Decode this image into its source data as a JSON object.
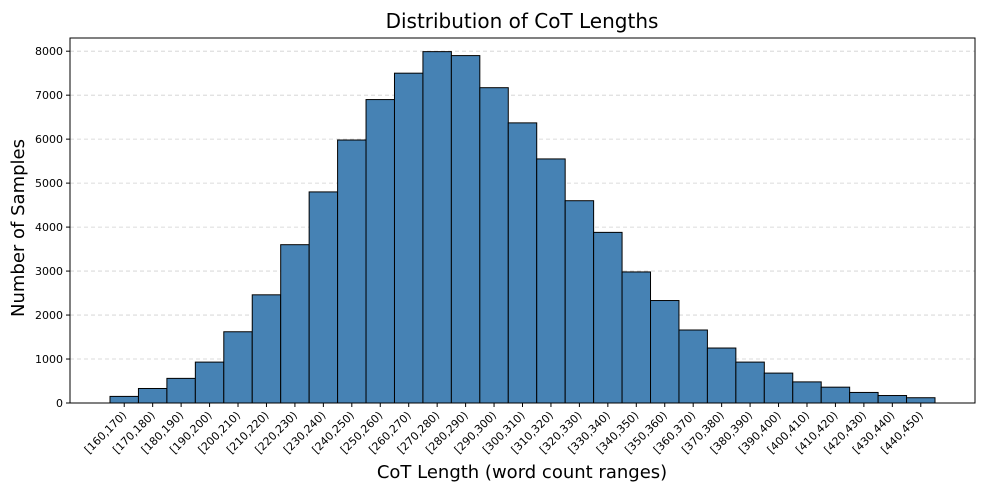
{
  "chart_data": {
    "type": "bar",
    "title": "Distribution of CoT Lengths",
    "xlabel": "CoT Length (word count ranges)",
    "ylabel": "Number of Samples",
    "categories": [
      "[160,170)",
      "[170,180)",
      "[180,190)",
      "[190,200)",
      "[200,210)",
      "[210,220)",
      "[220,230)",
      "[230,240)",
      "[240,250)",
      "[250,260)",
      "[260,270)",
      "[270,280)",
      "[280,290)",
      "[290,300)",
      "[300,310)",
      "[310,320)",
      "[320,330)",
      "[330,340)",
      "[340,350)",
      "[350,360)",
      "[360,370)",
      "[370,380)",
      "[380,390)",
      "[390,400)",
      "[400,410)",
      "[410,420)",
      "[420,430)",
      "[430,440)",
      "[440,450)"
    ],
    "values": [
      150,
      330,
      560,
      930,
      1620,
      2460,
      3600,
      4800,
      5980,
      6900,
      7500,
      7990,
      7900,
      7170,
      6370,
      5550,
      4600,
      3880,
      2980,
      2330,
      1660,
      1250,
      930,
      680,
      480,
      360,
      240,
      170,
      120
    ],
    "yticks": [
      0,
      1000,
      2000,
      3000,
      4000,
      5000,
      6000,
      7000,
      8000
    ],
    "ylim": [
      0,
      8300
    ],
    "grid": "horizontal dashed",
    "colors": {
      "bar_fill": "#4682b4",
      "bar_edge": "#000000",
      "grid": "#d0d0d0",
      "axis": "#000000"
    }
  }
}
